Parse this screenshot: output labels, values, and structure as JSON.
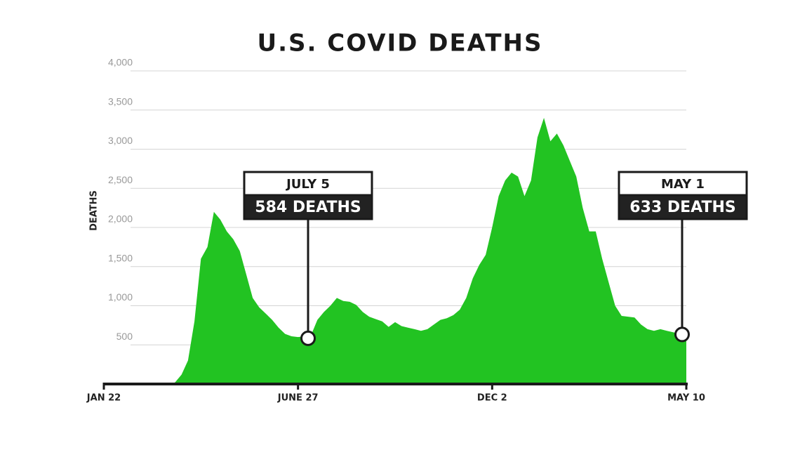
{
  "chart_data": {
    "type": "area",
    "title": "U.S. COVID DEATHS",
    "y_label": "DEATHS",
    "color": "#22c322",
    "grid": true,
    "categories": [
      "JAN 22",
      null,
      null,
      null,
      null,
      null,
      null,
      null,
      null,
      null,
      null,
      null,
      null,
      null,
      null,
      null,
      null,
      null,
      null,
      null,
      null,
      null,
      null,
      null,
      null,
      null,
      null,
      null,
      null,
      null,
      "JUNE 27",
      null,
      null,
      null,
      null,
      null,
      null,
      null,
      null,
      null,
      null,
      null,
      null,
      null,
      null,
      null,
      null,
      null,
      null,
      null,
      null,
      null,
      null,
      null,
      null,
      null,
      null,
      null,
      null,
      null,
      "DEC 2",
      null,
      null,
      null,
      null,
      null,
      null,
      null,
      null,
      null,
      null,
      null,
      null,
      null,
      null,
      null,
      null,
      null,
      null,
      null,
      null,
      null,
      null,
      null,
      null,
      null,
      null,
      null,
      null,
      null,
      "MAY 10"
    ],
    "values": [
      0,
      0,
      0,
      0,
      0,
      0,
      0,
      0,
      0,
      0,
      0,
      20,
      120,
      300,
      800,
      1600,
      1750,
      2200,
      2100,
      1950,
      1850,
      1700,
      1400,
      1100,
      980,
      900,
      820,
      720,
      640,
      610,
      600,
      610,
      620,
      820,
      920,
      1000,
      1100,
      1060,
      1050,
      1010,
      920,
      860,
      830,
      800,
      730,
      790,
      740,
      720,
      700,
      680,
      700,
      760,
      820,
      840,
      880,
      950,
      1100,
      1350,
      1520,
      1650,
      2000,
      2400,
      2600,
      2700,
      2650,
      2400,
      2600,
      3150,
      3400,
      3100,
      3200,
      3050,
      2850,
      2650,
      2250,
      1950,
      1950,
      1600,
      1300,
      1000,
      870,
      860,
      850,
      760,
      700,
      680,
      700,
      680,
      660,
      640,
      620
    ],
    "ylim": [
      0,
      4000
    ],
    "yticks": [
      500,
      {
        "value": 1000,
        "label": "1,000"
      },
      {
        "value": 1500,
        "label": "1,500"
      },
      {
        "value": 2000,
        "label": "2,000"
      },
      {
        "value": 2500,
        "label": "2,500"
      },
      {
        "value": 3000,
        "label": "3,000"
      },
      {
        "value": 3500,
        "label": "3,500"
      },
      {
        "value": 4000,
        "label": "4,000"
      }
    ],
    "annotations": [
      {
        "date": "JULY 5",
        "text": "584 DEATHS",
        "value": 584
      },
      {
        "date": "MAY 1",
        "text": "633 DEATHS",
        "value": 633
      }
    ]
  }
}
